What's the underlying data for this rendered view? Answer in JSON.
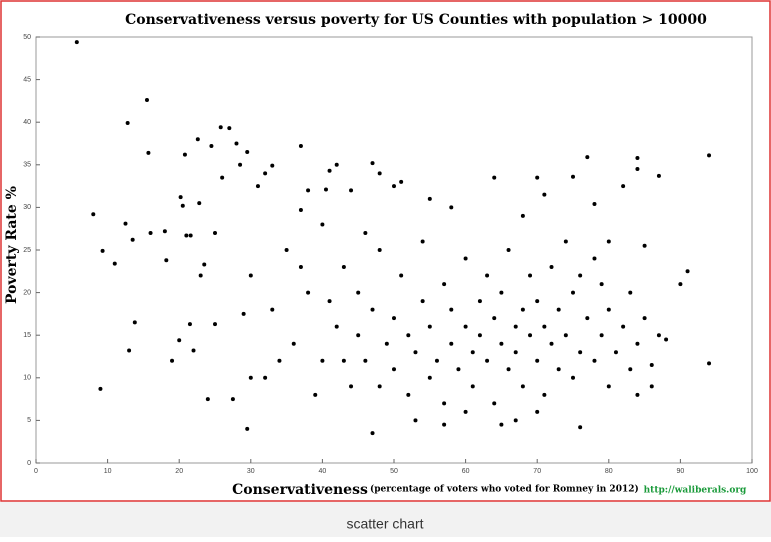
{
  "chart_data": {
    "type": "scatter",
    "title": "Conservativeness versus poverty for US Counties with population > 10000",
    "x_label": "Conservativeness",
    "x_label_note": "(percentage of voters who voted for Romney in 2012)",
    "y_label": "Poverty Rate %",
    "source": "http://waliberals.org",
    "color": "#000000",
    "x": [
      5.7,
      8,
      9,
      9.3,
      11,
      12.5,
      12.8,
      13,
      13.5,
      13.8,
      15.5,
      15.7,
      16,
      18,
      18.2,
      19,
      20,
      20.5,
      20.2,
      20.8,
      21,
      21.5,
      21.6,
      22,
      22.6,
      22.8,
      23,
      23.5,
      24,
      24.5,
      25,
      25,
      25.8,
      26,
      27,
      27.5,
      28,
      28.5,
      29,
      29.5,
      29.5,
      30,
      31,
      32,
      33,
      34,
      37,
      37,
      38,
      40,
      40.5,
      41,
      42,
      43,
      44,
      47,
      47,
      48,
      50,
      51,
      55,
      58,
      60,
      64,
      65,
      68,
      70,
      71,
      75,
      77,
      78,
      80,
      82,
      84,
      84,
      85,
      86,
      87,
      88,
      90,
      91,
      94,
      94,
      76,
      45,
      45,
      46,
      47,
      48,
      48,
      49,
      50,
      50,
      51,
      52,
      52,
      53,
      54,
      54,
      55,
      55,
      56,
      57,
      57,
      58,
      58,
      59,
      60,
      60,
      61,
      61,
      62,
      62,
      63,
      63,
      64,
      64,
      65,
      65,
      66,
      66,
      67,
      67,
      68,
      68,
      69,
      69,
      70,
      70,
      71,
      71,
      72,
      72,
      73,
      73,
      74,
      75,
      75,
      76,
      77,
      78,
      78,
      79,
      80,
      80,
      81,
      82,
      83,
      83,
      84,
      85,
      86,
      87,
      42,
      40,
      38,
      36,
      35,
      33,
      32,
      30,
      44,
      46,
      43,
      41,
      39,
      37,
      53,
      57,
      67,
      70,
      74,
      76,
      79,
      84
    ],
    "y": [
      49.4,
      29.2,
      8.7,
      24.9,
      23.4,
      28.1,
      39.9,
      13.2,
      26.2,
      16.5,
      42.6,
      36.4,
      27,
      27.2,
      23.8,
      12,
      14.4,
      30.2,
      31.2,
      36.2,
      26.7,
      16.3,
      26.7,
      13.2,
      38,
      30.5,
      22,
      23.3,
      7.5,
      37.2,
      27,
      16.3,
      39.4,
      33.5,
      39.3,
      7.5,
      37.5,
      35,
      17.5,
      4,
      36.5,
      10,
      32.5,
      34,
      34.9,
      12,
      37.2,
      29.7,
      32,
      28,
      32.1,
      34.3,
      35,
      23,
      32,
      3.5,
      35.2,
      34,
      32.5,
      33,
      31,
      30,
      6,
      33.5,
      4.5,
      29,
      33.5,
      31.5,
      33.6,
      35.9,
      30.4,
      26,
      32.5,
      35.8,
      34.5,
      25.5,
      11.5,
      33.7,
      14.5,
      21,
      22.5,
      36.1,
      11.7,
      4.2,
      15,
      20,
      12,
      18,
      9,
      25,
      14,
      11,
      17,
      22,
      8,
      15,
      13,
      19,
      26,
      10,
      16,
      12,
      21,
      7,
      14,
      18,
      11,
      16,
      24,
      13,
      9,
      19,
      15,
      12,
      22,
      17,
      7,
      14,
      20,
      11,
      25,
      16,
      13,
      18,
      9,
      15,
      22,
      12,
      19,
      16,
      8,
      14,
      23,
      11,
      18,
      15,
      20,
      10,
      13,
      17,
      12,
      24,
      15,
      9,
      18,
      13,
      16,
      11,
      20,
      14,
      17,
      9,
      15,
      16,
      12,
      20,
      14,
      25,
      18,
      10,
      22,
      9,
      27,
      12,
      19,
      8,
      23,
      5,
      4.5,
      5,
      6,
      26,
      22,
      21,
      8
    ],
    "xlim": [
      0,
      100
    ],
    "ylim": [
      0,
      50
    ],
    "xticks": [
      0,
      10,
      20,
      30,
      40,
      50,
      60,
      70,
      80,
      90,
      100
    ],
    "yticks": [
      0,
      5,
      10,
      15,
      20,
      25,
      30,
      35,
      40,
      45,
      50
    ]
  },
  "footer": {
    "caption": "scatter chart"
  }
}
